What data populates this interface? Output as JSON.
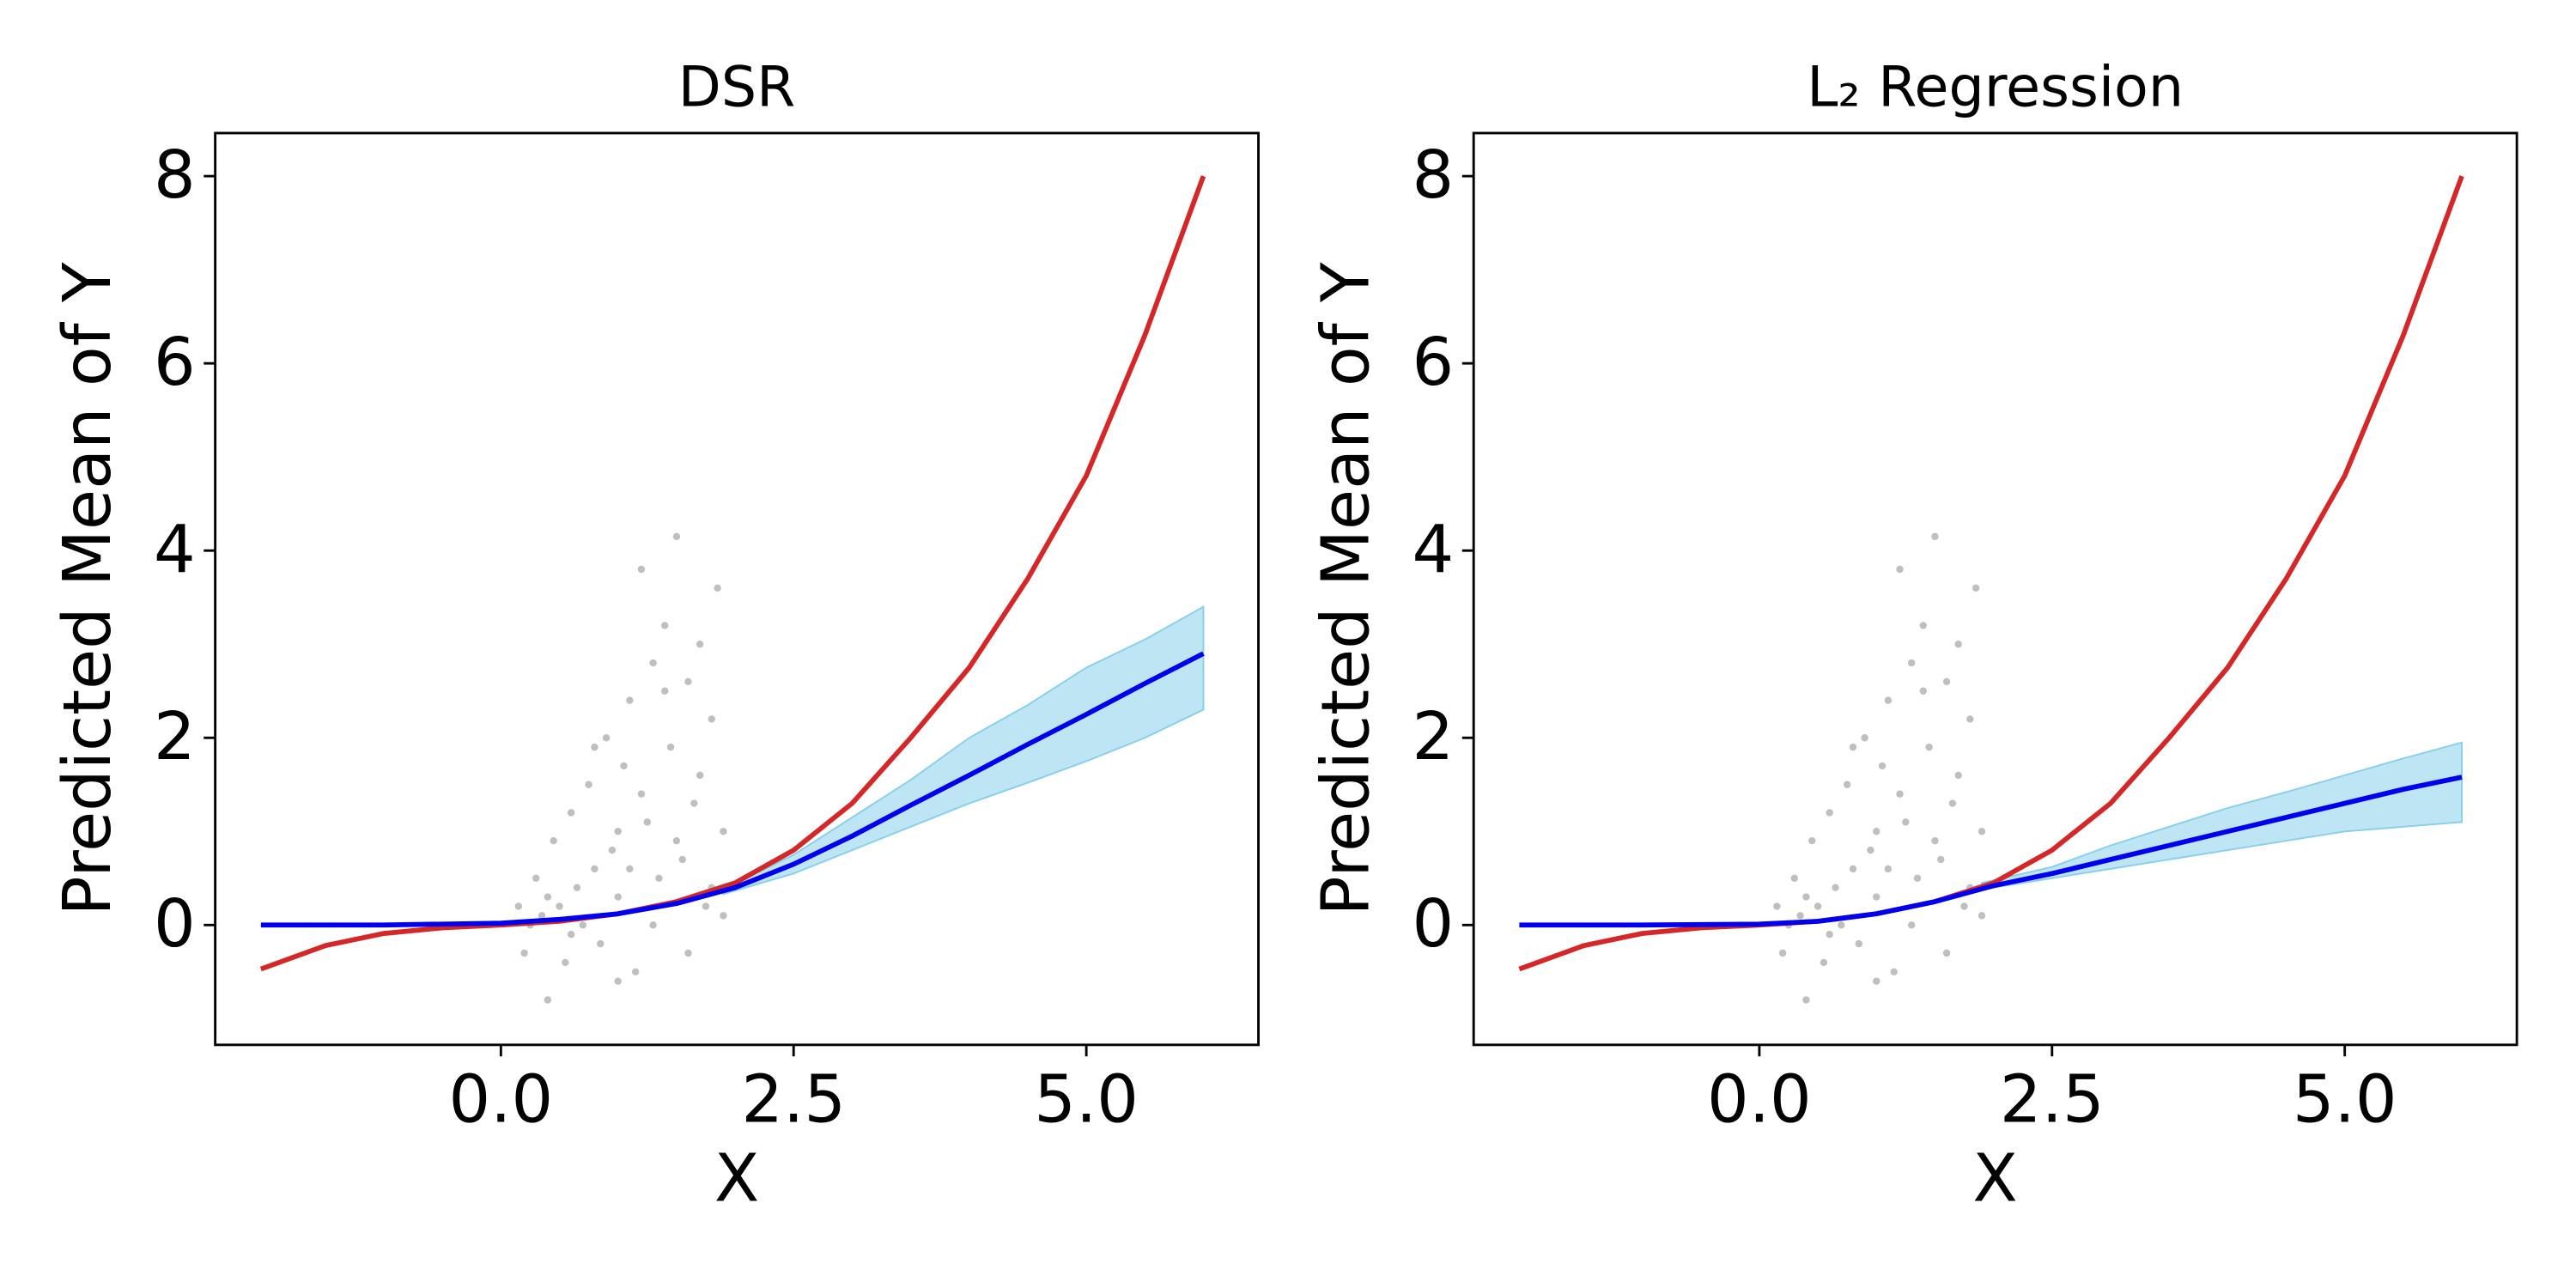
{
  "chart_data": [
    {
      "type": "line",
      "title": "DSR",
      "xlabel": "X",
      "ylabel": "Predicted Mean of Y",
      "xlim": [
        -2.44,
        6.47
      ],
      "ylim": [
        -1.28,
        8.46
      ],
      "xticks": [
        {
          "value": 0,
          "label": "0.0"
        },
        {
          "value": 2.5,
          "label": "2.5"
        },
        {
          "value": 5,
          "label": "5.0"
        }
      ],
      "yticks": [
        0,
        2,
        4,
        6,
        8
      ],
      "scatter": {
        "color": "#bfbfbf",
        "x": [
          0.2,
          0.3,
          0.35,
          0.4,
          0.45,
          0.5,
          0.55,
          0.6,
          0.65,
          0.7,
          0.75,
          0.8,
          0.85,
          0.9,
          0.95,
          1.0,
          1.05,
          1.1,
          1.15,
          1.2,
          1.25,
          1.3,
          1.35,
          1.4,
          1.45,
          1.5,
          1.55,
          1.6,
          1.65,
          1.7,
          1.75,
          1.8,
          1.85,
          1.9,
          0.25,
          0.6,
          1.0,
          1.3,
          1.6,
          1.8,
          0.4,
          0.8,
          1.2,
          1.4,
          1.7,
          0.15,
          1.0,
          1.5,
          1.9,
          1.1
        ],
        "y": [
          -0.3,
          0.5,
          0.1,
          -0.8,
          0.9,
          0.2,
          -0.4,
          1.2,
          0.4,
          0.0,
          1.5,
          0.6,
          -0.2,
          2.0,
          0.8,
          0.3,
          1.7,
          2.4,
          -0.5,
          3.8,
          1.1,
          2.8,
          0.5,
          3.2,
          1.9,
          4.15,
          0.7,
          2.6,
          1.3,
          3.0,
          0.2,
          2.2,
          3.6,
          1.0,
          0.0,
          -0.1,
          1.0,
          0.0,
          -0.3,
          0.4,
          0.3,
          1.9,
          1.4,
          2.5,
          1.6,
          0.2,
          -0.6,
          0.9,
          0.1,
          0.6
        ]
      },
      "band": {
        "color": "#87cfeb",
        "x": [
          1.9,
          2.5,
          3,
          3.5,
          4,
          4.5,
          5,
          5.5,
          6
        ],
        "lower": [
          0.33,
          0.55,
          0.8,
          1.05,
          1.3,
          1.52,
          1.75,
          2.0,
          2.3
        ],
        "upper": [
          0.38,
          0.75,
          1.15,
          1.55,
          2.0,
          2.35,
          2.75,
          3.05,
          3.4
        ]
      },
      "series": [
        {
          "color": "#d62728",
          "x": [
            -2.05,
            -1.5,
            -1,
            -0.5,
            0,
            0.5,
            1,
            1.5,
            2,
            2.5,
            3,
            3.5,
            4,
            4.5,
            5,
            5.5,
            6
          ],
          "values": [
            -0.47,
            -0.22,
            -0.09,
            -0.03,
            0,
            0.04,
            0.12,
            0.25,
            0.45,
            0.8,
            1.3,
            2.0,
            2.75,
            3.7,
            4.8,
            6.3,
            8.0
          ]
        },
        {
          "color": "#0000ee",
          "x": [
            -2.05,
            -1,
            0,
            0.5,
            1,
            1.5,
            2,
            2.5,
            3,
            3.5,
            4,
            4.5,
            5,
            5.5,
            6
          ],
          "values": [
            0,
            0,
            0.02,
            0.06,
            0.12,
            0.23,
            0.4,
            0.65,
            0.95,
            1.28,
            1.6,
            1.93,
            2.25,
            2.58,
            2.9
          ]
        }
      ]
    },
    {
      "type": "line",
      "title": "L₂ Regression",
      "xlabel": "X",
      "ylabel": "Predicted Mean of Y",
      "xlim": [
        -2.44,
        6.47
      ],
      "ylim": [
        -1.28,
        8.46
      ],
      "xticks": [
        {
          "value": 0,
          "label": "0.0"
        },
        {
          "value": 2.5,
          "label": "2.5"
        },
        {
          "value": 5,
          "label": "5.0"
        }
      ],
      "yticks": [
        0,
        2,
        4,
        6,
        8
      ],
      "scatter": {
        "color": "#bfbfbf",
        "x": [
          0.2,
          0.3,
          0.35,
          0.4,
          0.45,
          0.5,
          0.55,
          0.6,
          0.65,
          0.7,
          0.75,
          0.8,
          0.85,
          0.9,
          0.95,
          1.0,
          1.05,
          1.1,
          1.15,
          1.2,
          1.25,
          1.3,
          1.35,
          1.4,
          1.45,
          1.5,
          1.55,
          1.6,
          1.65,
          1.7,
          1.75,
          1.8,
          1.85,
          1.9,
          0.25,
          0.6,
          1.0,
          1.3,
          1.6,
          1.8,
          0.4,
          0.8,
          1.2,
          1.4,
          1.7,
          0.15,
          1.0,
          1.5,
          1.9,
          1.1
        ],
        "y": [
          -0.3,
          0.5,
          0.1,
          -0.8,
          0.9,
          0.2,
          -0.4,
          1.2,
          0.4,
          0.0,
          1.5,
          0.6,
          -0.2,
          2.0,
          0.8,
          0.3,
          1.7,
          2.4,
          -0.5,
          3.8,
          1.1,
          2.8,
          0.5,
          3.2,
          1.9,
          4.15,
          0.7,
          2.6,
          1.3,
          3.0,
          0.2,
          2.2,
          3.6,
          1.0,
          0.0,
          -0.1,
          1.0,
          0.0,
          -0.3,
          0.4,
          0.3,
          1.9,
          1.4,
          2.5,
          1.6,
          0.2,
          -0.6,
          0.9,
          0.1,
          0.6
        ]
      },
      "band": {
        "color": "#87cfeb",
        "x": [
          1.9,
          2.5,
          3,
          3.5,
          4,
          4.5,
          5,
          5.5,
          6
        ],
        "lower": [
          0.38,
          0.5,
          0.6,
          0.7,
          0.8,
          0.9,
          1.0,
          1.05,
          1.1
        ],
        "upper": [
          0.45,
          0.62,
          0.85,
          1.05,
          1.25,
          1.42,
          1.6,
          1.78,
          1.95
        ]
      },
      "series": [
        {
          "color": "#d62728",
          "x": [
            -2.05,
            -1.5,
            -1,
            -0.5,
            0,
            0.5,
            1,
            1.5,
            2,
            2.5,
            3,
            3.5,
            4,
            4.5,
            5,
            5.5,
            6
          ],
          "values": [
            -0.47,
            -0.22,
            -0.09,
            -0.03,
            0,
            0.04,
            0.12,
            0.25,
            0.45,
            0.8,
            1.3,
            2.0,
            2.75,
            3.7,
            4.8,
            6.3,
            8.0
          ]
        },
        {
          "color": "#0000ee",
          "x": [
            -2.05,
            -1,
            0,
            0.5,
            1,
            1.5,
            2,
            2.5,
            3,
            3.5,
            4,
            4.5,
            5,
            5.5,
            6
          ],
          "values": [
            0,
            0,
            0.01,
            0.04,
            0.12,
            0.25,
            0.42,
            0.55,
            0.7,
            0.85,
            1.0,
            1.15,
            1.3,
            1.45,
            1.58
          ]
        }
      ]
    }
  ]
}
